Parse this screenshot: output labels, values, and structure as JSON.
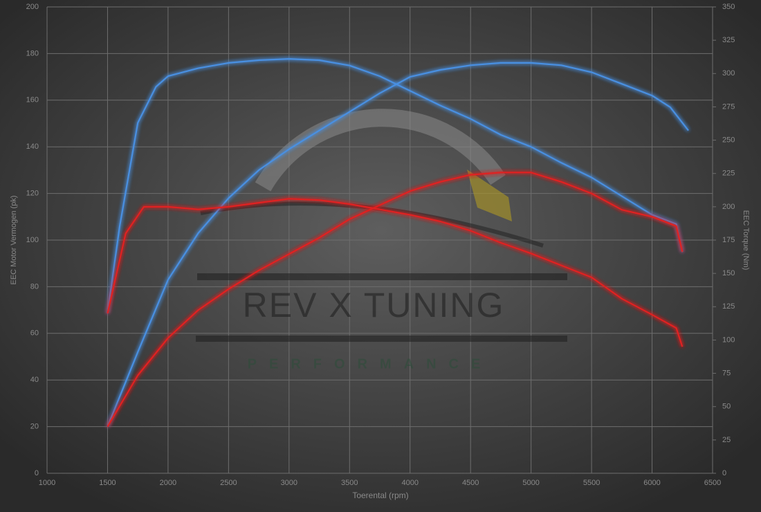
{
  "chart_data": {
    "type": "line",
    "xlabel": "Toerental (rpm)",
    "ylabel": "EEC Motor Vermogen (pk)",
    "y2label": "EEC Torque (Nm)",
    "watermark": {
      "title": "REV X TUNING",
      "subtitle": "PERFORMANCE"
    },
    "xlim": [
      1000,
      6500
    ],
    "xticks": [
      1000,
      1500,
      2000,
      2500,
      3000,
      3500,
      4000,
      4500,
      5000,
      5500,
      6000,
      6500
    ],
    "ylim": [
      0,
      200
    ],
    "yticks": [
      0,
      20,
      40,
      60,
      80,
      100,
      120,
      140,
      160,
      180,
      200
    ],
    "y2lim": [
      0,
      350
    ],
    "y2ticks": [
      0,
      25,
      50,
      75,
      100,
      125,
      150,
      175,
      200,
      225,
      250,
      275,
      300,
      325,
      350
    ],
    "grid": true,
    "series": [
      {
        "color": "#4a90e2",
        "x": [
          1500,
          1750,
          2000,
          2250,
          2500,
          2750,
          3000,
          3250,
          3500,
          3750,
          4000,
          4250,
          4500,
          4750,
          5000,
          5250,
          5500,
          5750,
          6000,
          6150,
          6300
        ],
        "values": [
          20,
          52,
          83,
          103,
          118,
          130,
          139,
          147,
          155,
          163,
          170,
          173,
          175,
          176,
          176,
          175,
          172,
          167,
          162,
          157,
          147
        ]
      },
      {
        "color": "#4a90e2",
        "axis": "y2",
        "x": [
          1500,
          1600,
          1750,
          1900,
          2000,
          2250,
          2500,
          2750,
          3000,
          3250,
          3500,
          3750,
          4000,
          4250,
          4500,
          4750,
          5000,
          5250,
          5500,
          5750,
          6000,
          6200,
          6250
        ],
        "values": [
          120,
          185,
          263,
          290,
          298,
          304,
          308,
          310,
          311,
          310,
          306,
          298,
          287,
          276,
          266,
          254,
          245,
          233,
          222,
          208,
          194,
          187,
          166
        ]
      },
      {
        "color": "#e02020",
        "x": [
          1500,
          1750,
          2000,
          2250,
          2500,
          2750,
          3000,
          3250,
          3500,
          3750,
          4000,
          4250,
          4500,
          4750,
          5000,
          5250,
          5500,
          5750,
          6000,
          6200,
          6250
        ],
        "values": [
          20,
          42,
          58,
          70,
          79,
          87,
          94,
          101,
          109,
          115,
          121,
          125,
          128,
          129,
          129,
          125,
          120,
          113,
          110,
          106,
          95
        ]
      },
      {
        "color": "#e02020",
        "axis": "y2",
        "x": [
          1500,
          1650,
          1800,
          2000,
          2250,
          2500,
          2750,
          3000,
          3250,
          3500,
          3750,
          4000,
          4250,
          4500,
          4750,
          5000,
          5250,
          5500,
          5750,
          6000,
          6200,
          6250
        ],
        "values": [
          120,
          180,
          200,
          200,
          198,
          200,
          203,
          206,
          205,
          202,
          198,
          194,
          189,
          182,
          173,
          165,
          156,
          147,
          131,
          119,
          109,
          95
        ]
      }
    ]
  }
}
